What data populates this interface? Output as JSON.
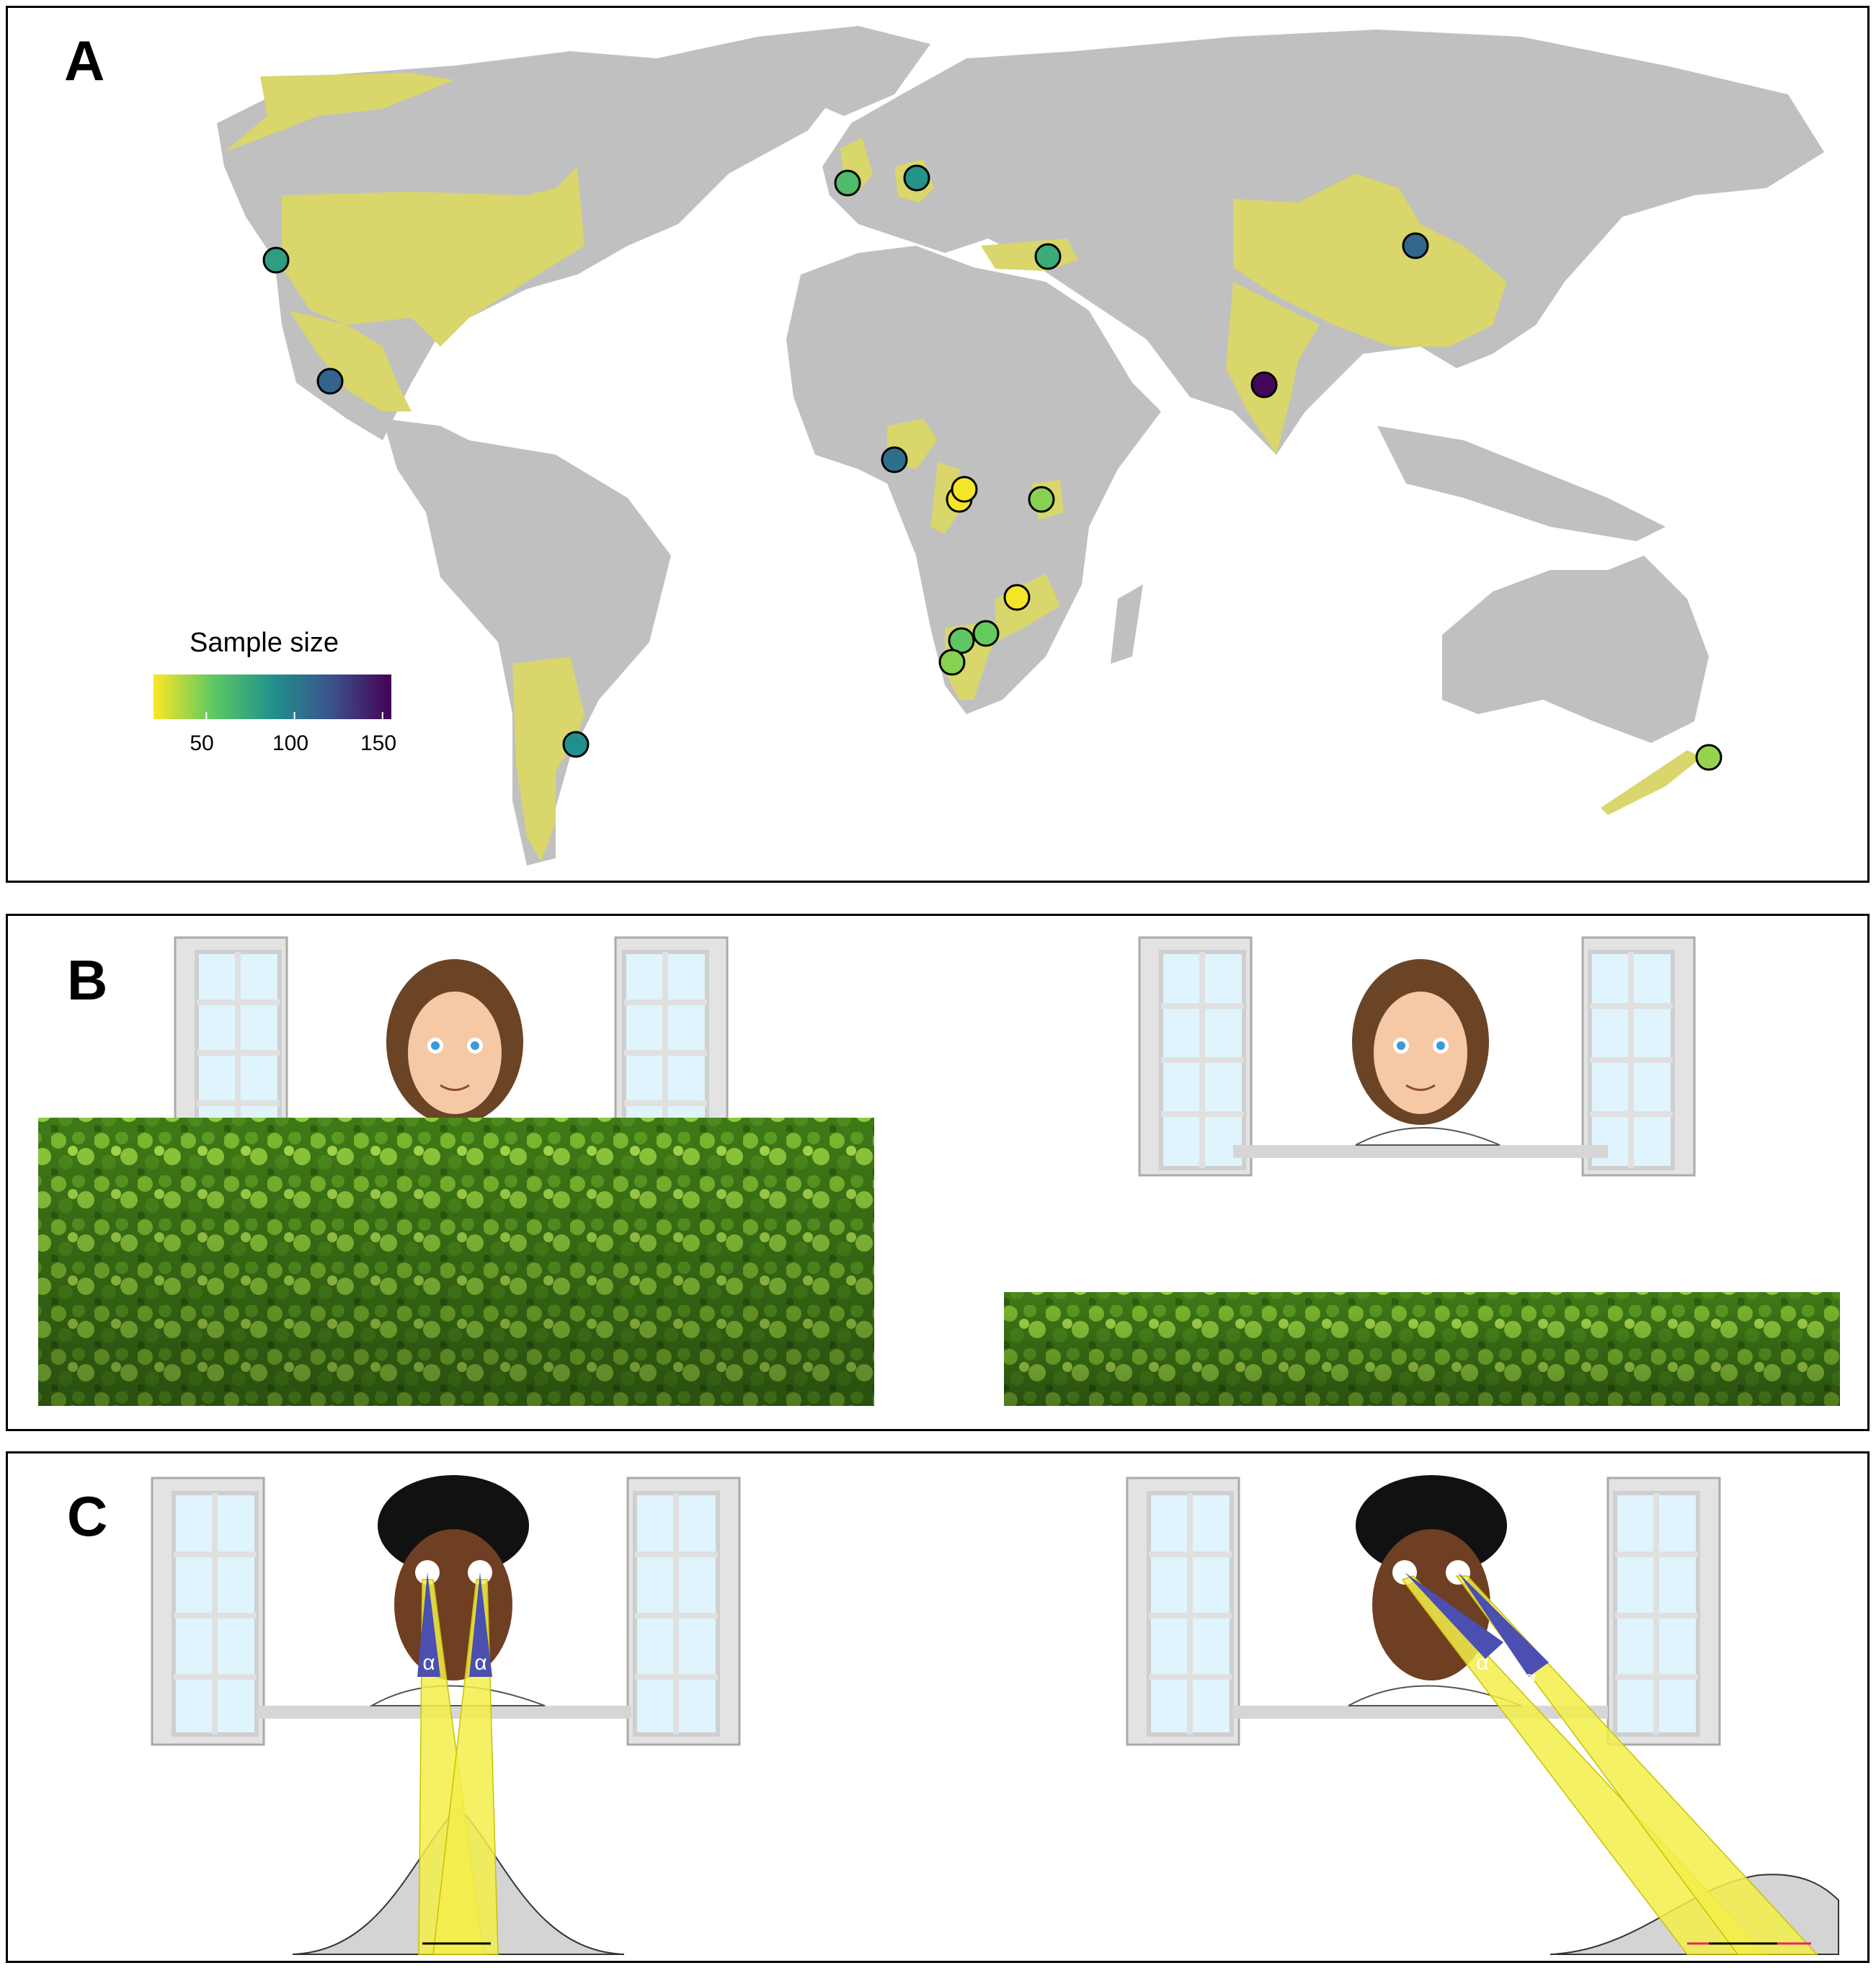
{
  "panels": {
    "a": {
      "label": "A"
    },
    "b": {
      "label": "B"
    },
    "c": {
      "label": "C"
    }
  },
  "legend": {
    "title": "Sample size",
    "ticks": [
      "50",
      "100",
      "150"
    ],
    "tick_values": [
      50,
      100,
      150
    ],
    "range": [
      20,
      155
    ],
    "colormap": [
      "#fde725",
      "#5ec962",
      "#21918c",
      "#3b528b",
      "#440154"
    ]
  },
  "colors": {
    "land": "#c0c0c0",
    "sampled_country": "#d9d66c",
    "hedge": "#4f8a1e",
    "gaze_cone": "#4b4fb0",
    "gaze_rays": "#f3ee4a",
    "window_glass": "#dff4fc"
  },
  "sites": [
    {
      "region": "western-us",
      "n": 80
    },
    {
      "region": "mexico",
      "n": 112
    },
    {
      "region": "argentina",
      "n": 88
    },
    {
      "region": "uk",
      "n": 62
    },
    {
      "region": "germany",
      "n": 86
    },
    {
      "region": "turkey",
      "n": 72
    },
    {
      "region": "china",
      "n": 110
    },
    {
      "region": "india",
      "n": 152
    },
    {
      "region": "nigeria",
      "n": 105
    },
    {
      "region": "cameroon-1",
      "n": 22
    },
    {
      "region": "cameroon-2",
      "n": 22
    },
    {
      "region": "uganda",
      "n": 45
    },
    {
      "region": "zambia",
      "n": 22
    },
    {
      "region": "namibia-1",
      "n": 55
    },
    {
      "region": "namibia-2",
      "n": 52
    },
    {
      "region": "namibia-3",
      "n": 45
    },
    {
      "region": "new-zealand",
      "n": 42
    }
  ],
  "gaze_symbol": "α"
}
